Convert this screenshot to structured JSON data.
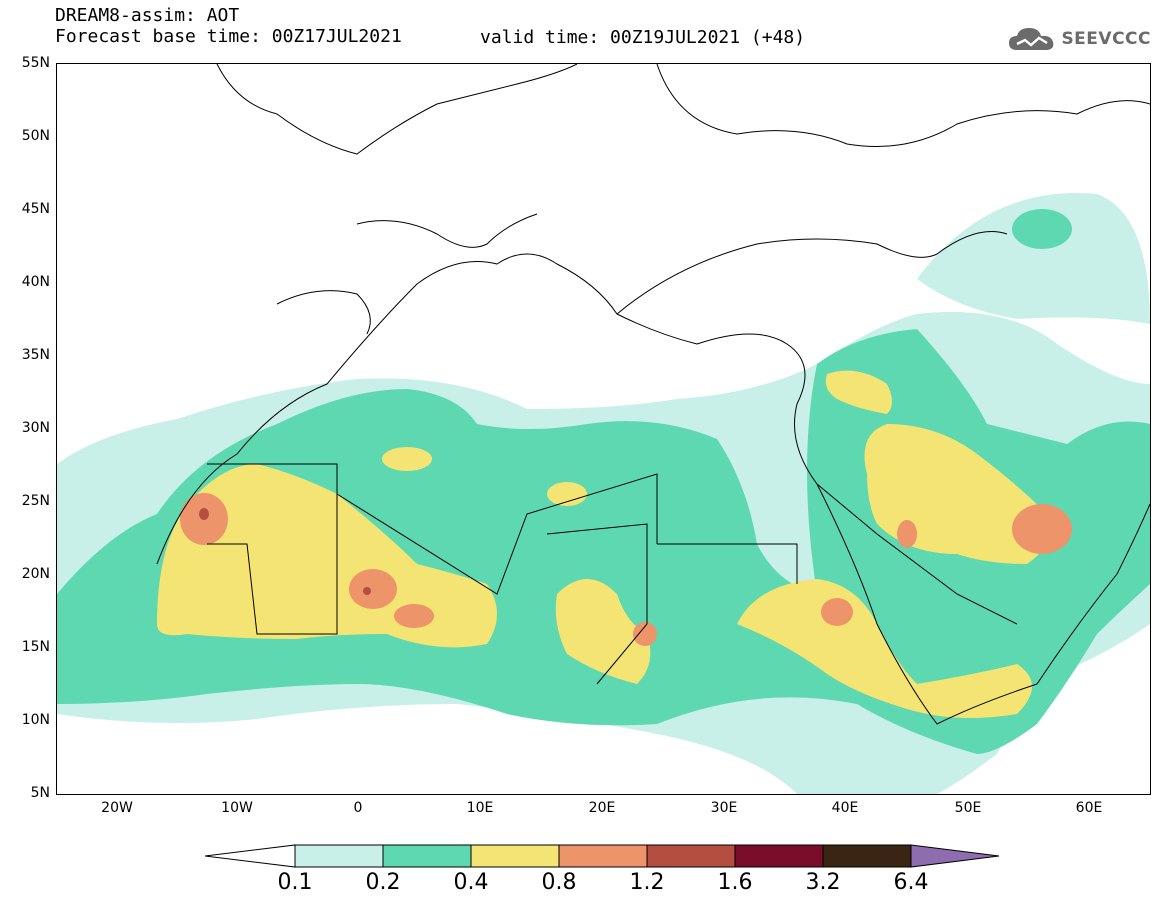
{
  "header": {
    "title": "DREAM8-assim: AOT",
    "base_time": "Forecast base time: 00Z17JUL2021",
    "valid_time": "valid time: 00Z19JUL2021 (+48)",
    "logo_text": "SEEVCCC"
  },
  "map": {
    "lat_labels": [
      "55N",
      "50N",
      "45N",
      "40N",
      "35N",
      "30N",
      "25N",
      "20N",
      "15N",
      "10N",
      "5N"
    ],
    "lon_labels": [
      "20W",
      "10W",
      "0",
      "10E",
      "20E",
      "30E",
      "40E",
      "50E",
      "60E"
    ]
  },
  "colorbar": {
    "labels": [
      "0.1",
      "0.2",
      "0.4",
      "0.8",
      "1.2",
      "1.6",
      "3.2",
      "6.4"
    ],
    "colors": [
      "#ffffff",
      "#c8f0e8",
      "#5ed8b0",
      "#f4e474",
      "#ee946a",
      "#b44e40",
      "#7a0e28",
      "#3a2414",
      "#8e6cb0"
    ]
  },
  "colors": {
    "level_01": "#c8f0e8",
    "level_02": "#5ed8b0",
    "level_04": "#f4e474",
    "level_08": "#ee946a",
    "level_12": "#b44e40"
  }
}
